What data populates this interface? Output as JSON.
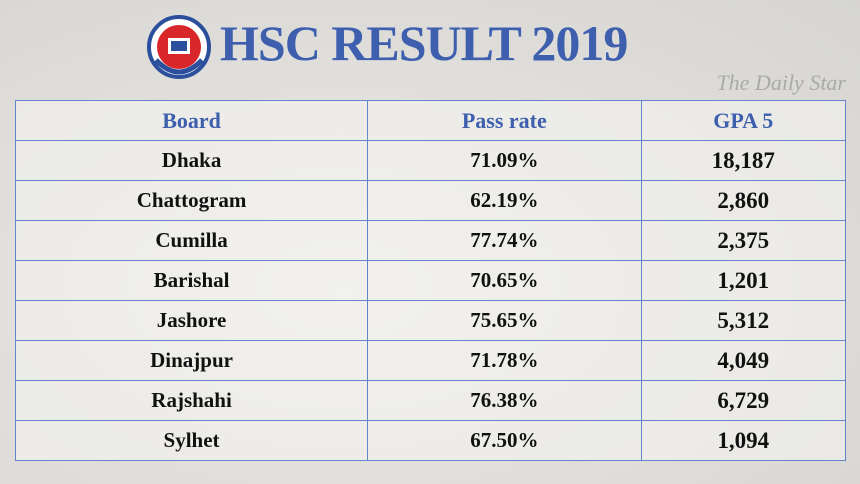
{
  "header": {
    "title": "HSC RESULT 2019",
    "watermark": "The Daily Star"
  },
  "table": {
    "columns": [
      "Board",
      "Pass rate",
      "GPA 5"
    ],
    "rows": [
      [
        "Dhaka",
        "71.09%",
        "18,187"
      ],
      [
        "Chattogram",
        "62.19%",
        "2,860"
      ],
      [
        "Cumilla",
        "77.74%",
        "2,375"
      ],
      [
        "Barishal",
        "70.65%",
        "1,201"
      ],
      [
        "Jashore",
        "75.65%",
        "5,312"
      ],
      [
        "Dinajpur",
        "71.78%",
        "4,049"
      ],
      [
        "Rajshahi",
        "76.38%",
        "6,729"
      ],
      [
        "Sylhet",
        "67.50%",
        "1,094"
      ]
    ]
  }
}
